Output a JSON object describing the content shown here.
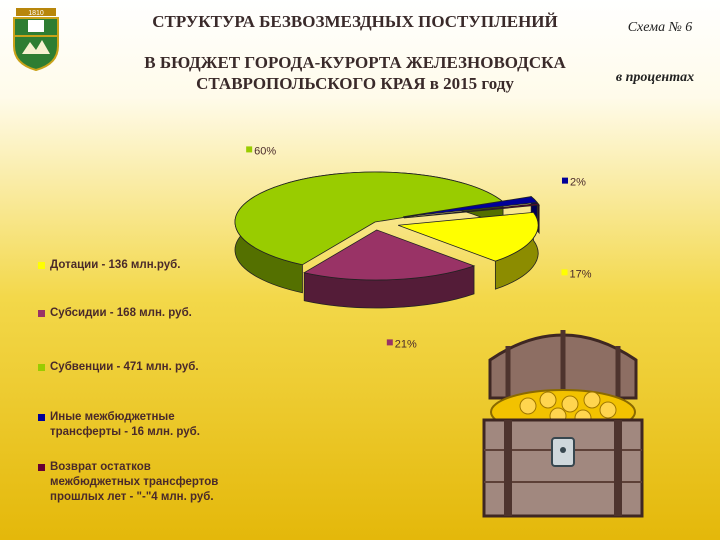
{
  "header": {
    "title_line1": "СТРУКТУРА БЕЗВОЗМЕЗДНЫХ ПОСТУПЛЕНИЙ",
    "title_line2": "В БЮДЖЕТ ГОРОДА-КУРОРТА ЖЕЛЕЗНОВОДСКА",
    "title_line3": "СТАВРОПОЛЬСКОГО КРАЯ в 2015 году",
    "scheme": "Схема № 6",
    "units": "в процентах",
    "coat_of_arms_text": "1810"
  },
  "chart_data": {
    "type": "pie",
    "title": "",
    "slices": [
      {
        "label": "Дотации - 136 млн.руб.",
        "value": 17,
        "value_label": "17%",
        "color": "#ffff00"
      },
      {
        "label": "Субсидии - 168 млн. руб.",
        "value": 21,
        "value_label": "21%",
        "color": "#993366"
      },
      {
        "label": "Субвенции - 471 млн. руб.",
        "value": 60,
        "value_label": "60%",
        "color": "#99cc00"
      },
      {
        "label": "Иные межбюджетные трансферты - 16 млн. руб.",
        "value": 2,
        "value_label": "2%",
        "color": "#000099"
      },
      {
        "label": "Возврат остатков межбюджетных трансфертов прошлых лет - \"-\"4 млн. руб.",
        "value": 0.5,
        "value_label": "",
        "color": "#660033"
      }
    ],
    "legend_position": "left",
    "style": "3d"
  },
  "decor": {
    "image": "treasure-chest-icon"
  }
}
